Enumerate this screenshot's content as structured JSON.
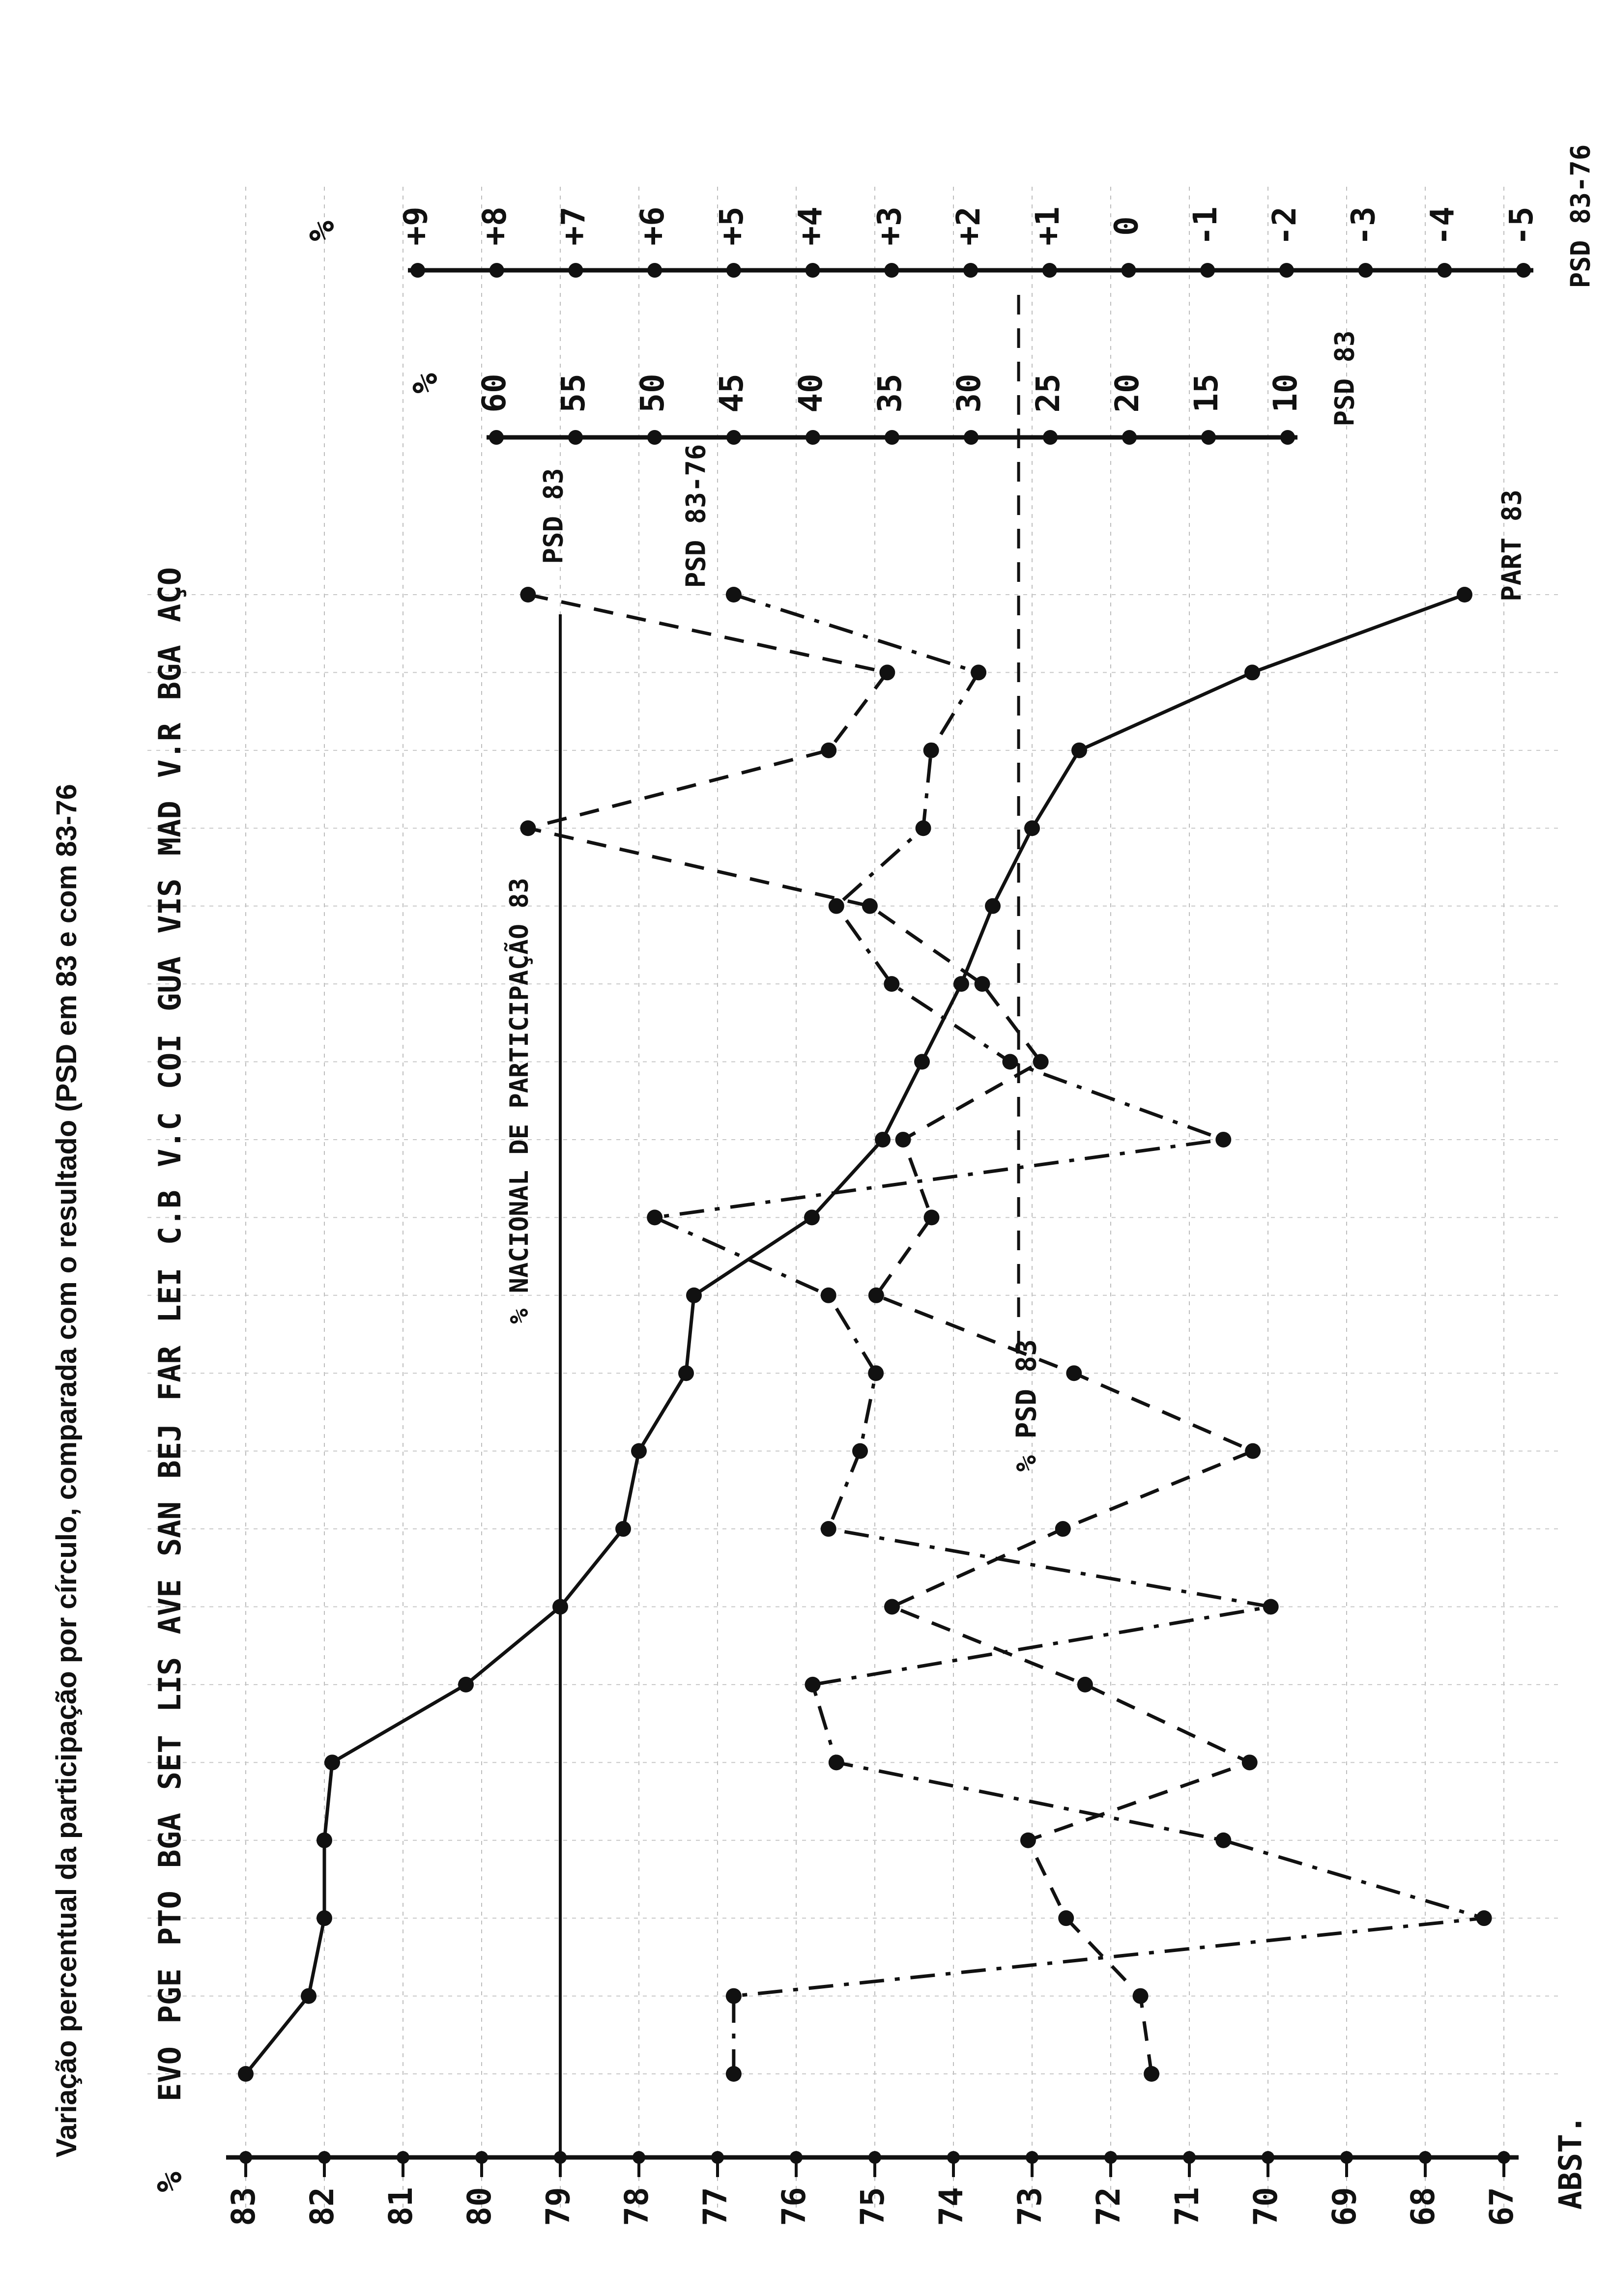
{
  "chart_data": {
    "type": "line",
    "title": "Variação percentual da participação por círculo, comparada com o resultado (PSD em 83 e com 83-76",
    "categories": [
      "EVO",
      "PGE",
      "PTO",
      "BGA",
      "SET",
      "LIS",
      "AVE",
      "SAN",
      "BEJ",
      "FAR",
      "LEI",
      "C.B",
      "V.C",
      "COI",
      "GUA",
      "VIS",
      "MAD",
      "V.R",
      "BGA",
      "AÇO"
    ],
    "axes": {
      "participation": {
        "label": "%",
        "bottom_label": "ABST.",
        "ticks": [
          "83",
          "82",
          "81",
          "80",
          "79",
          "78",
          "77",
          "76",
          "75",
          "74",
          "73",
          "72",
          "71",
          "70",
          "69",
          "68",
          "67"
        ],
        "range": [
          83,
          67
        ]
      },
      "psd83": {
        "label": "%",
        "caption": "PSD 83",
        "ticks": [
          "60",
          "55",
          "50",
          "45",
          "40",
          "35",
          "30",
          "25",
          "20",
          "15",
          "10"
        ],
        "range": [
          60,
          10
        ]
      },
      "psd8376": {
        "label": "%",
        "caption": "PSD 83-76",
        "ticks": [
          "+9",
          "+8",
          "+7",
          "+6",
          "+5",
          "+4",
          "+3",
          "+2",
          "+1",
          "0",
          "-1",
          "-2",
          "-3",
          "-4",
          "-5"
        ],
        "range": [
          9,
          -5
        ]
      }
    },
    "series": [
      {
        "name": "PART 83",
        "axis": "participation",
        "style": "solid",
        "values": [
          83.0,
          82.2,
          82.0,
          82.0,
          81.9,
          80.2,
          79.0,
          78.2,
          78.0,
          77.4,
          77.3,
          75.8,
          74.9,
          74.4,
          73.9,
          73.5,
          73.0,
          72.4,
          70.2,
          67.5
        ]
      },
      {
        "name": "PSD 83",
        "axis": "psd83",
        "style": "dashed",
        "values": [
          18.6,
          19.3,
          24.0,
          26.4,
          12.4,
          22.8,
          35.0,
          24.2,
          12.2,
          23.5,
          36.0,
          32.5,
          34.3,
          25.6,
          29.3,
          36.4,
          58.0,
          39.0,
          35.3,
          58.0
        ]
      },
      {
        "name": "PSD 83-76",
        "axis": "psd8376",
        "style": "dashdot",
        "values": [
          5.0,
          5.0,
          -4.5,
          -1.2,
          3.7,
          4.0,
          -1.8,
          3.8,
          3.4,
          3.2,
          3.8,
          6.0,
          -1.2,
          1.5,
          3.0,
          3.7,
          2.6,
          2.5,
          1.9,
          5.0
        ]
      }
    ],
    "annotations": {
      "psd83_label": "PSD 83",
      "psd8376_label": "PSD 83-76",
      "part83_label": "PART 83",
      "national_participation": "% NACIONAL DE PARTICIPAÇÃO 83",
      "national_participation_value": 79.0,
      "national_psd": "% PSD 83",
      "national_psd_value": 27.0
    }
  }
}
